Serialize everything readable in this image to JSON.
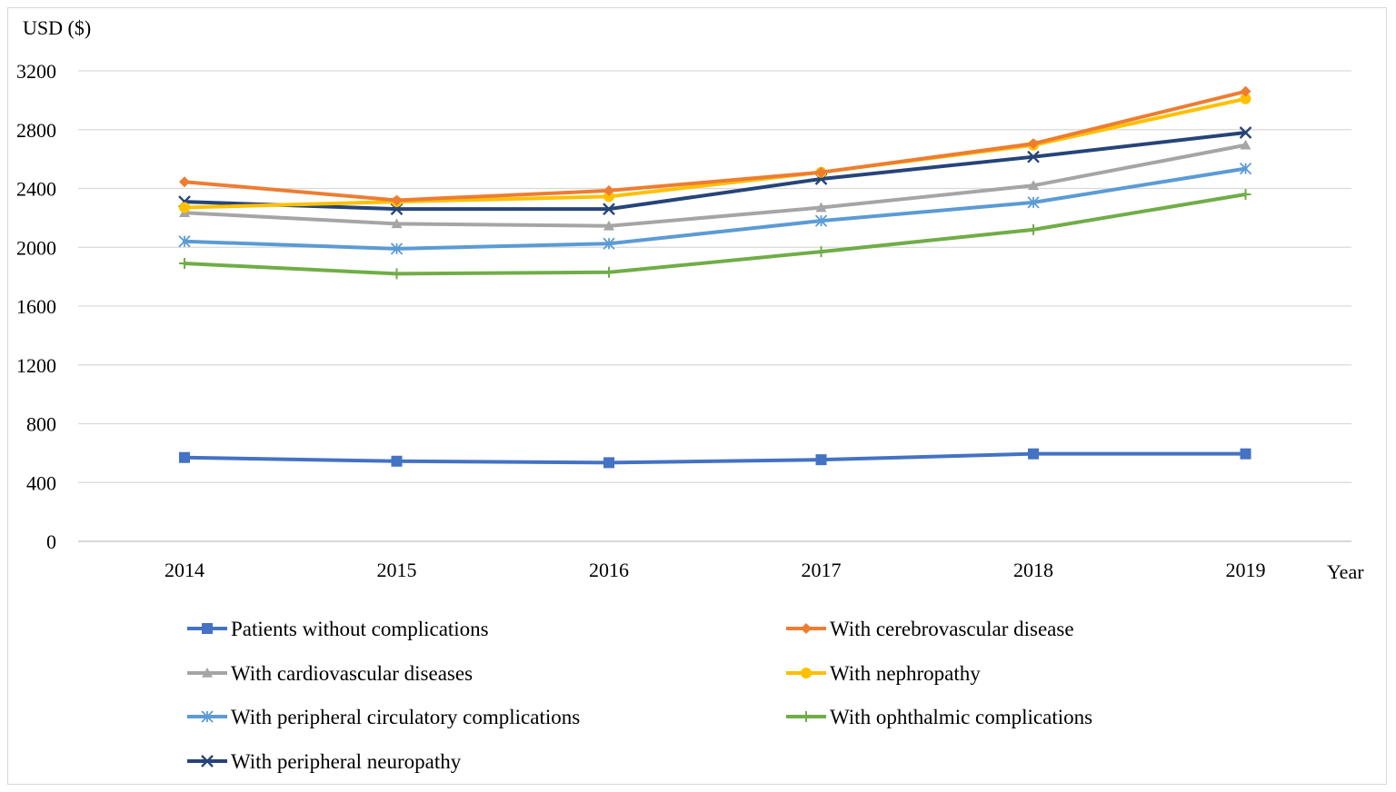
{
  "chart_data": {
    "type": "line",
    "title": "",
    "ylabel": "USD ($)",
    "xlabel": "Year",
    "ylim": [
      0,
      3200
    ],
    "yticks": [
      0,
      400,
      800,
      1200,
      1600,
      2000,
      2400,
      2800,
      3200
    ],
    "categories": [
      "2014",
      "2015",
      "2016",
      "2017",
      "2018",
      "2019"
    ],
    "grid": true,
    "legend_position": "bottom",
    "series": [
      {
        "name": "Patients without complications",
        "color": "#4472c4",
        "marker": "square",
        "values": [
          570,
          545,
          535,
          555,
          595,
          595
        ]
      },
      {
        "name": "With cerebrovascular disease",
        "color": "#ed7d31",
        "marker": "diamond",
        "values": [
          2445,
          2320,
          2385,
          2510,
          2705,
          3060
        ]
      },
      {
        "name": "With cardiovascular diseases",
        "color": "#a5a5a5",
        "marker": "triangle",
        "values": [
          2235,
          2160,
          2145,
          2270,
          2420,
          2695
        ]
      },
      {
        "name": "With nephropathy",
        "color": "#ffc000",
        "marker": "circle",
        "values": [
          2270,
          2310,
          2345,
          2510,
          2695,
          3010
        ]
      },
      {
        "name": "With peripheral circulatory complications",
        "color": "#5b9bd5",
        "marker": "asterisk",
        "values": [
          2040,
          1990,
          2025,
          2180,
          2305,
          2535
        ]
      },
      {
        "name": "With ophthalmic complications",
        "color": "#70ad47",
        "marker": "plus",
        "values": [
          1890,
          1820,
          1830,
          1970,
          2120,
          2360
        ]
      },
      {
        "name": "With peripheral neuropathy",
        "color": "#264478",
        "marker": "x",
        "values": [
          2310,
          2260,
          2260,
          2465,
          2615,
          2780
        ]
      }
    ]
  }
}
